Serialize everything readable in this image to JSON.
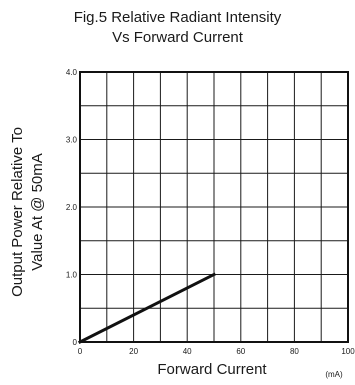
{
  "chart_data": {
    "type": "line",
    "title": "Fig.5 Relative Radiant Intensity",
    "subtitle": "Vs Forward Current",
    "xlabel": "Forward Current",
    "xunit": "(mA)",
    "ylabel_line1": "Output Power Relative To",
    "ylabel_line2": "Value At @ 50mA",
    "xlim": [
      0,
      100
    ],
    "ylim": [
      0,
      4
    ],
    "x_ticks": [
      "0",
      "20",
      "40",
      "60",
      "80",
      "100"
    ],
    "y_ticks": [
      "0",
      "1.0",
      "2.0",
      "3.0",
      "4.0"
    ],
    "grid": true,
    "series": [
      {
        "x": [
          0,
          50
        ],
        "y": [
          0,
          1.0
        ]
      }
    ],
    "colors": {
      "line": "#111111",
      "grid": "#1a1a1a",
      "frame": "#111111"
    }
  }
}
